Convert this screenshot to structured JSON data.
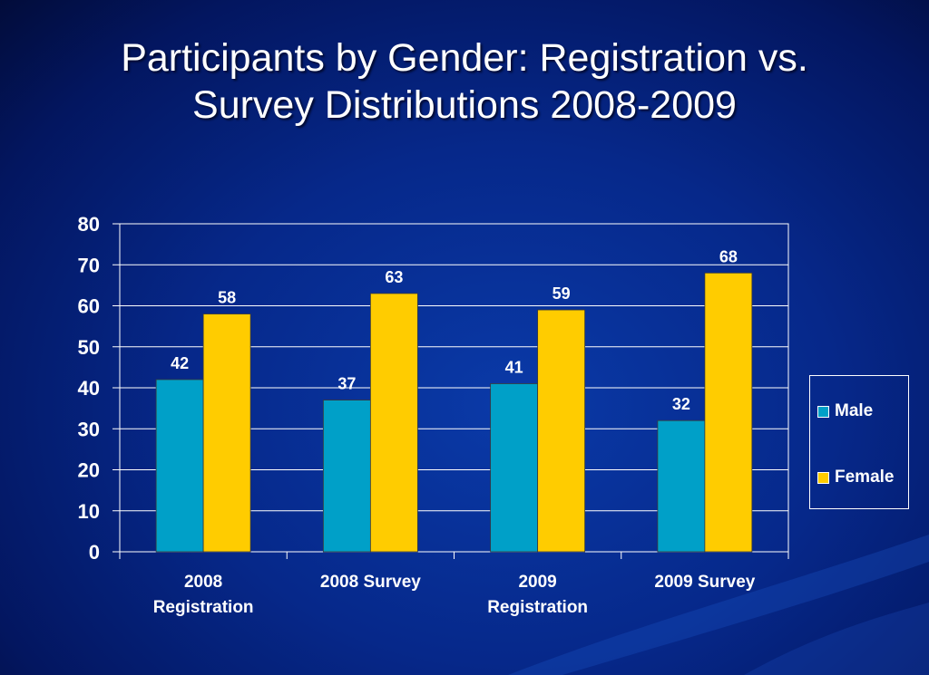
{
  "slide": {
    "title_line1": "Participants by Gender: Registration vs.",
    "title_line2": "Survey Distributions 2008-2009"
  },
  "colors": {
    "male": "#00A0C8",
    "female": "#FFCC00",
    "text": "#FFFFFF"
  },
  "chart_data": {
    "type": "bar",
    "categories": [
      [
        "2008",
        "Registration"
      ],
      [
        "2008 Survey"
      ],
      [
        "2009",
        "Registration"
      ],
      [
        "2009 Survey"
      ]
    ],
    "series": [
      {
        "name": "Male",
        "values": [
          42,
          37,
          41,
          32
        ]
      },
      {
        "name": "Female",
        "values": [
          58,
          63,
          59,
          68
        ]
      }
    ],
    "ylim": [
      0,
      80
    ],
    "yticks": [
      0,
      10,
      20,
      30,
      40,
      50,
      60,
      70,
      80
    ],
    "grid": true,
    "legend_position": "right"
  }
}
